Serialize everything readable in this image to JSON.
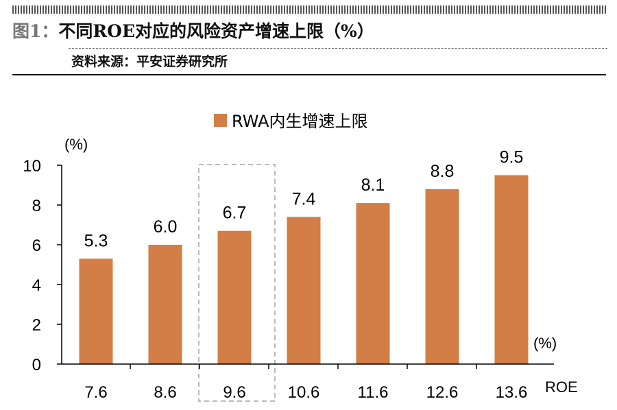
{
  "figure": {
    "number": "图1：",
    "title": "不同ROE对应的风险资产增速上限（%）",
    "source": "资料来源：平安证券研究所"
  },
  "chart_data": {
    "type": "bar",
    "categories": [
      "7.6",
      "8.6",
      "9.6",
      "10.6",
      "11.6",
      "12.6",
      "13.6"
    ],
    "series": [
      {
        "name": "RWA内生增速上限",
        "values": [
          5.3,
          6.0,
          6.7,
          7.4,
          8.1,
          8.8,
          9.5
        ],
        "color": "#D27E46"
      }
    ],
    "data_labels": [
      "5.3",
      "6.0",
      "6.7",
      "7.4",
      "8.1",
      "8.8",
      "9.5"
    ],
    "y_ticks": [
      0,
      2,
      4,
      6,
      8,
      10
    ],
    "ylim": [
      0,
      10
    ],
    "y_unit": "(%)",
    "x_unit": "(%)",
    "xlabel": "ROE",
    "highlight_category": "9.6",
    "legend_position": "top-center",
    "grid": false
  }
}
